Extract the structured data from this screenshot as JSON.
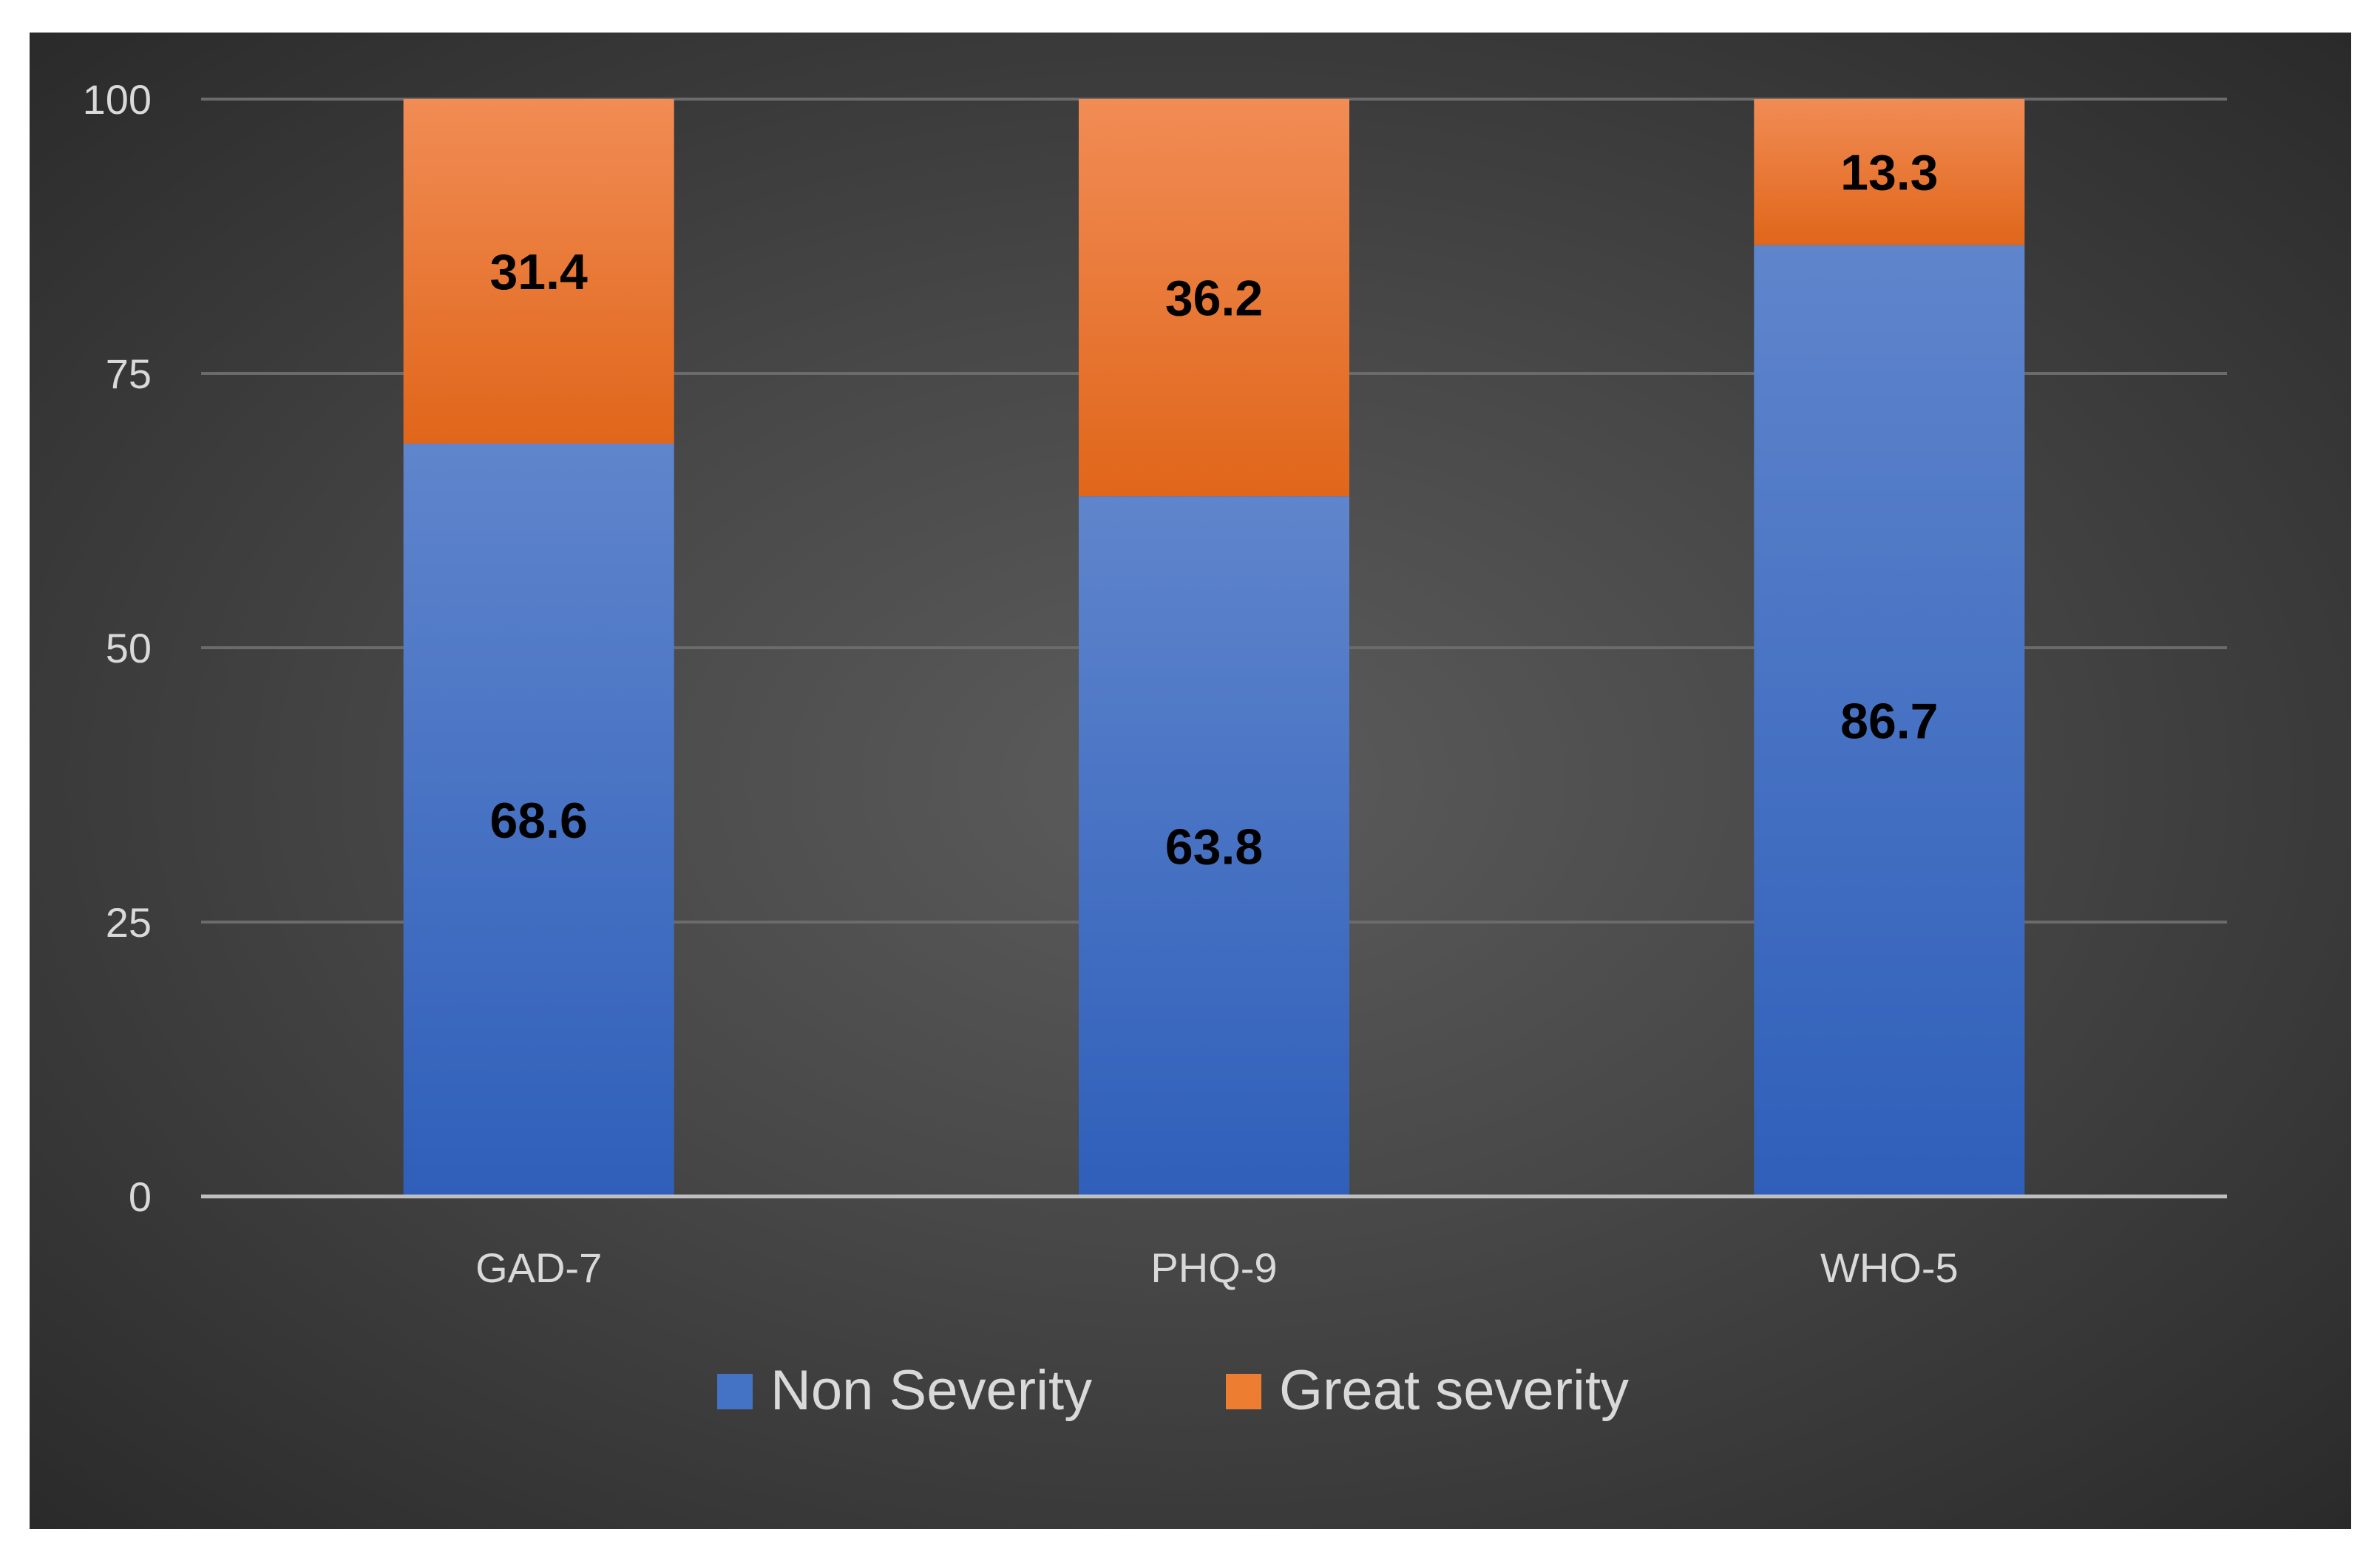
{
  "chart_data": {
    "type": "bar",
    "stacked": true,
    "title": "",
    "xlabel": "",
    "ylabel": "",
    "ylim": [
      0,
      100
    ],
    "yticks": [
      0,
      25,
      50,
      75,
      100
    ],
    "yticks_text": [
      "0",
      "25",
      "50",
      "75",
      "100"
    ],
    "grid": true,
    "legend_position": "bottom",
    "categories": [
      "GAD-7",
      "PHQ-9",
      "WHO-5"
    ],
    "series": [
      {
        "name": "Non Severity",
        "values": [
          68.6,
          63.8,
          86.7
        ],
        "labels": [
          "68.6",
          "63.8",
          "86.7"
        ],
        "color": "#4472c4"
      },
      {
        "name": "Great severity",
        "values": [
          31.4,
          36.2,
          13.3
        ],
        "labels": [
          "31.4",
          "36.2",
          "13.3"
        ],
        "color": "#ed7d31"
      }
    ]
  }
}
